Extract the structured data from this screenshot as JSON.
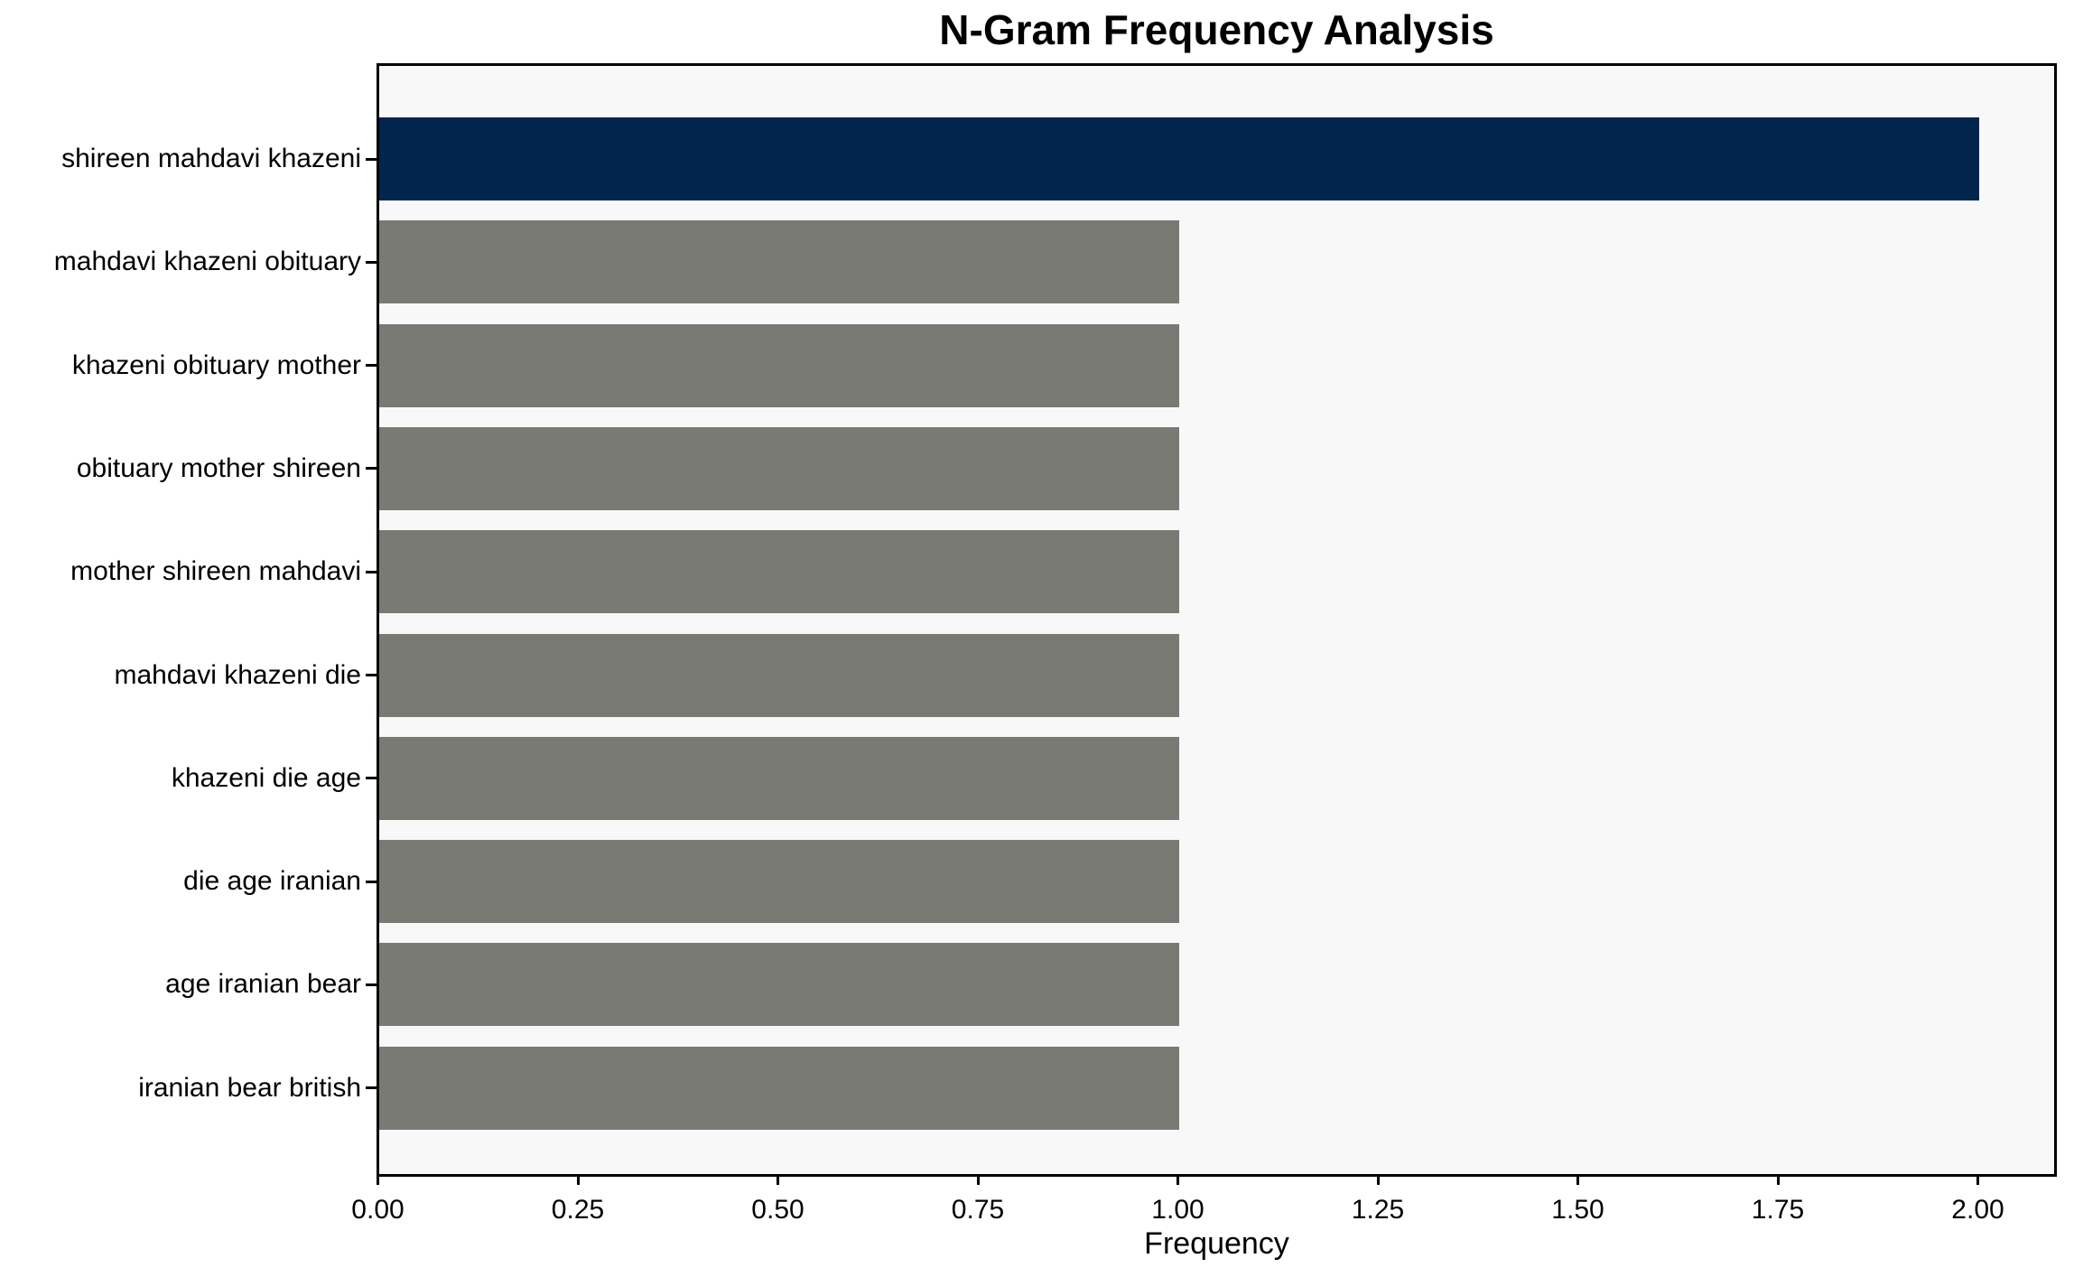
{
  "figure": {
    "title": "N-Gram Frequency Analysis",
    "xlabel": "Frequency"
  },
  "chart_data": {
    "type": "bar",
    "orientation": "horizontal",
    "title": "N-Gram Frequency Analysis",
    "xlabel": "Frequency",
    "ylabel": "",
    "categories": [
      "shireen mahdavi khazeni",
      "mahdavi khazeni obituary",
      "khazeni obituary mother",
      "obituary mother shireen",
      "mother shireen mahdavi",
      "mahdavi khazeni die",
      "khazeni die age",
      "die age iranian",
      "age iranian bear",
      "iranian bear british"
    ],
    "values": [
      2,
      1,
      1,
      1,
      1,
      1,
      1,
      1,
      1,
      1
    ],
    "bar_colors": [
      "#02254e",
      "#7a7a75",
      "#7a7a75",
      "#7a7a75",
      "#7a7a75",
      "#7a7a75",
      "#7a7a75",
      "#7a7a75",
      "#7a7a75",
      "#7a7a75"
    ],
    "xlim": [
      0,
      2.1
    ],
    "xticks": [
      0,
      0.25,
      0.5,
      0.75,
      1.0,
      1.25,
      1.5,
      1.75,
      2.0
    ],
    "xtick_labels": [
      "0.00",
      "0.25",
      "0.50",
      "0.75",
      "1.00",
      "1.25",
      "1.50",
      "1.75",
      "2.00"
    ],
    "grid": false,
    "legend": null,
    "colors": {
      "highlight_bar": "#02254e",
      "default_bar": "#7a7a75",
      "plot_background": "#f8f8f8",
      "figure_background": "#ffffff",
      "axis": "#000000",
      "text": "#000000"
    }
  }
}
